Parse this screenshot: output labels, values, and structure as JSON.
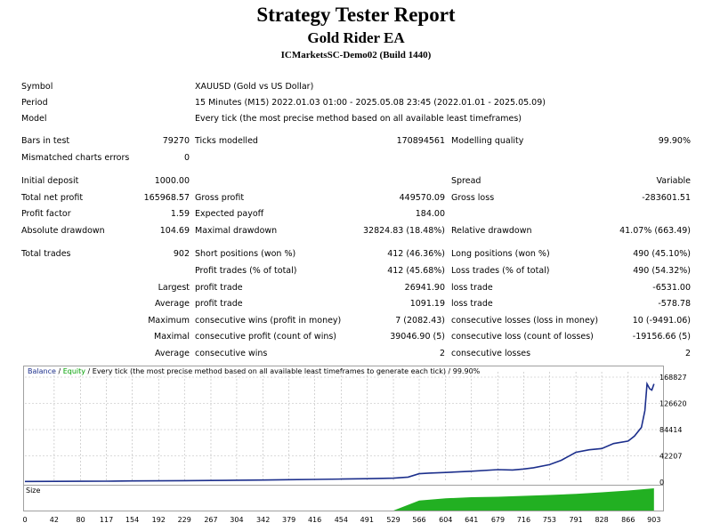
{
  "header": {
    "title": "Strategy Tester Report",
    "ea_name": "Gold Rider EA",
    "server": "ICMarketsSC-Demo02 (Build 1440)"
  },
  "info": {
    "symbol_label": "Symbol",
    "symbol_value": "XAUUSD (Gold vs US Dollar)",
    "period_label": "Period",
    "period_value": "15 Minutes (M15) 2022.01.03 01:00 - 2025.05.08 23:45 (2022.01.01 - 2025.05.09)",
    "model_label": "Model",
    "model_value": "Every tick (the most precise method based on all available least timeframes)"
  },
  "stats": {
    "bars_label": "Bars in test",
    "bars_value": "79270",
    "ticks_label": "Ticks modelled",
    "ticks_value": "170894561",
    "quality_label": "Modelling quality",
    "quality_value": "99.90%",
    "mismatch_label": "Mismatched charts errors",
    "mismatch_value": "0",
    "deposit_label": "Initial deposit",
    "deposit_value": "1000.00",
    "spread_label": "Spread",
    "spread_value": "Variable",
    "netprofit_label": "Total net profit",
    "netprofit_value": "165968.57",
    "grossprofit_label": "Gross profit",
    "grossprofit_value": "449570.09",
    "grossloss_label": "Gross loss",
    "grossloss_value": "-283601.51",
    "pf_label": "Profit factor",
    "pf_value": "1.59",
    "payoff_label": "Expected payoff",
    "payoff_value": "184.00",
    "absdd_label": "Absolute drawdown",
    "absdd_value": "104.69",
    "maxdd_label": "Maximal drawdown",
    "maxdd_value": "32824.83 (18.48%)",
    "reldd_label": "Relative drawdown",
    "reldd_value": "41.07% (663.49)",
    "trades_label": "Total trades",
    "trades_value": "902",
    "short_label": "Short positions (won %)",
    "short_value": "412 (46.36%)",
    "long_label": "Long positions (won %)",
    "long_value": "490 (45.10%)",
    "profit_trades_label": "Profit trades (% of total)",
    "profit_trades_value": "412 (45.68%)",
    "loss_trades_label": "Loss trades (% of total)",
    "loss_trades_value": "490 (54.32%)",
    "largest_word": "Largest",
    "largest_profit_label": "profit trade",
    "largest_profit_value": "26941.90",
    "largest_loss_label": "loss trade",
    "largest_loss_value": "-6531.00",
    "average_word": "Average",
    "average_profit_label": "profit trade",
    "average_profit_value": "1091.19",
    "average_loss_label": "loss trade",
    "average_loss_value": "-578.78",
    "maximum_word": "Maximum",
    "max_cons_wins_label": "consecutive wins (profit in money)",
    "max_cons_wins_value": "7 (2082.43)",
    "max_cons_losses_label": "consecutive losses (loss in money)",
    "max_cons_losses_value": "10 (-9491.06)",
    "maximal_word": "Maximal",
    "maximal_cons_profit_label": "consecutive profit (count of wins)",
    "maximal_cons_profit_value": "39046.90 (5)",
    "maximal_cons_loss_label": "consecutive loss (count of losses)",
    "maximal_cons_loss_value": "-19156.66 (5)",
    "average2_word": "Average",
    "avg_cons_wins_label": "consecutive wins",
    "avg_cons_wins_value": "2",
    "avg_cons_losses_label": "consecutive losses",
    "avg_cons_losses_value": "2"
  },
  "chart_legend": {
    "balance": "Balance",
    "sep1": " / ",
    "equity": "Equity",
    "sep2": " / ",
    "rest": "Every tick (the most precise method based on all available least timeframes to generate each tick)",
    "sep3": " / ",
    "quality": "99.90%"
  },
  "size_label": "Size",
  "colors": {
    "balance": "#1c2f8c",
    "equity": "#00a000",
    "size": "#22b022",
    "grid": "#b8b8b8"
  },
  "chart_data": {
    "type": "line",
    "title": "",
    "xlabel": "",
    "ylabel": "",
    "xlim": [
      0,
      902
    ],
    "ylim": [
      0,
      168827
    ],
    "y_ticks": [
      0,
      42207,
      84414,
      126620,
      168827
    ],
    "x_ticks": [
      0,
      42,
      80,
      117,
      154,
      192,
      229,
      267,
      304,
      342,
      379,
      416,
      454,
      491,
      529,
      566,
      604,
      641,
      679,
      716,
      753,
      791,
      828,
      866,
      903
    ],
    "grid": true,
    "series": [
      {
        "name": "Balance",
        "x": [
          0,
          42,
          80,
          117,
          154,
          192,
          229,
          267,
          304,
          342,
          379,
          416,
          454,
          491,
          529,
          550,
          566,
          580,
          604,
          641,
          679,
          700,
          716,
          730,
          753,
          770,
          791,
          810,
          828,
          845,
          866,
          875,
          885,
          890,
          893,
          897,
          900,
          903
        ],
        "values": [
          1000,
          1100,
          1300,
          1500,
          1800,
          2000,
          2300,
          2600,
          3000,
          3300,
          3800,
          4300,
          4800,
          5500,
          6300,
          8000,
          13500,
          14500,
          15500,
          17500,
          20000,
          19500,
          21000,
          23000,
          28000,
          35000,
          48000,
          52000,
          54000,
          62000,
          66000,
          74000,
          88000,
          115000,
          158000,
          150000,
          148000,
          158000
        ]
      }
    ],
    "size_series": {
      "name": "Size",
      "x": [
        0,
        529,
        566,
        604,
        641,
        679,
        716,
        753,
        791,
        828,
        866,
        903
      ],
      "values": [
        0,
        0,
        0.45,
        0.55,
        0.6,
        0.62,
        0.66,
        0.7,
        0.75,
        0.82,
        0.9,
        1.0
      ]
    }
  }
}
